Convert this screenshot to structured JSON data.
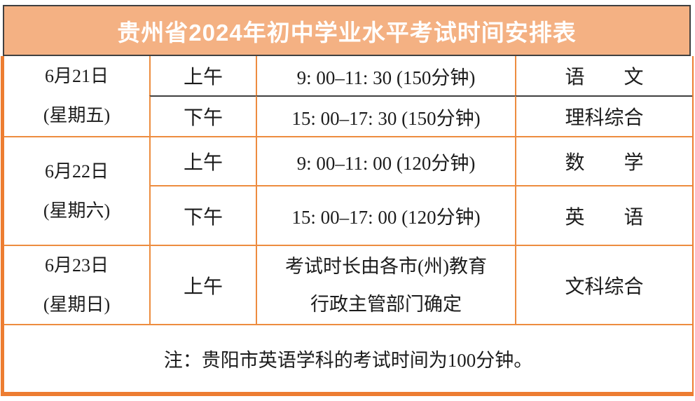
{
  "title": "贵州省2024年初中学业水平考试时间安排表",
  "colors": {
    "banner_background": "#F4B183",
    "banner_border": "#404040",
    "outer_border": "#ED7D31",
    "grid_line": "#ED8C3F",
    "dark_row_line": "#404040",
    "title_text": "#FFFFFF",
    "body_text": "#1C1C1C"
  },
  "table": {
    "groups": [
      {
        "date_line1": "6月21日",
        "date_line2": "(星期五)",
        "sessions": [
          {
            "period": "上午",
            "time": "9: 00–11: 30 (150分钟)",
            "subject": "语　　文"
          },
          {
            "period": "下午",
            "time": "15: 00–17: 30 (150分钟)",
            "subject": "理科综合"
          }
        ]
      },
      {
        "date_line1": "6月22日",
        "date_line2": "(星期六)",
        "sessions": [
          {
            "period": "上午",
            "time": "9: 00–11: 00 (120分钟)",
            "subject": "数　　学"
          },
          {
            "period": "下午",
            "time": "15: 00–17: 00 (120分钟)",
            "subject": "英　　语"
          }
        ]
      },
      {
        "date_line1": "6月23日",
        "date_line2": "(星期日)",
        "sessions": [
          {
            "period": "上午",
            "time_lines": [
              "考试时长由各市(州)教育",
              "行政主管部门确定"
            ],
            "subject": "文科综合"
          }
        ]
      }
    ],
    "note": "注：贵阳市英语学科的考试时间为100分钟。"
  }
}
